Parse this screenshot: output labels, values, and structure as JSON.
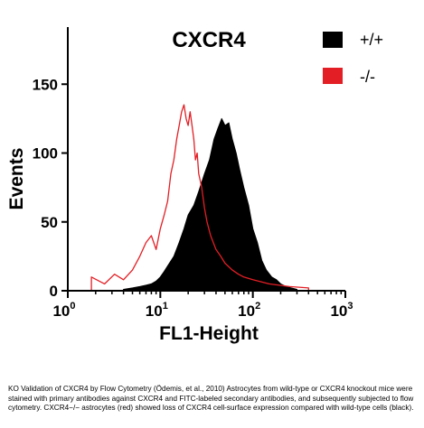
{
  "chart_data": {
    "type": "histogram",
    "title": "CXCR4",
    "xlabel": "FL1-Height",
    "ylabel": "Events",
    "xscale": "log",
    "xlim": [
      1,
      1000
    ],
    "ylim": [
      0,
      160
    ],
    "x_ticks": [
      {
        "base": "10",
        "exp": "0"
      },
      {
        "base": "10",
        "exp": "1"
      },
      {
        "base": "10",
        "exp": "2"
      },
      {
        "base": "10",
        "exp": "3"
      }
    ],
    "y_ticks": [
      0,
      50,
      100,
      150
    ],
    "legend_position": "top-right",
    "series": [
      {
        "name": "+/+",
        "color": "#000000",
        "style": "filled",
        "x": [
          4,
          5,
          6,
          7,
          8,
          9,
          10,
          11,
          12,
          14,
          16,
          18,
          20,
          23,
          26,
          30,
          34,
          38,
          42,
          46,
          50,
          55,
          60,
          66,
          72,
          80,
          90,
          100,
          112,
          125,
          140,
          160,
          180,
          200,
          230,
          260,
          300
        ],
        "y": [
          1,
          2,
          3,
          4,
          5,
          7,
          10,
          14,
          18,
          25,
          35,
          45,
          55,
          62,
          72,
          85,
          95,
          110,
          118,
          125,
          120,
          122,
          110,
          100,
          88,
          75,
          62,
          45,
          35,
          22,
          15,
          10,
          8,
          5,
          3,
          2,
          1
        ]
      },
      {
        "name": "-/-",
        "color": "#e31e24",
        "style": "outline",
        "x": [
          1.8,
          2.5,
          3.2,
          4,
          5,
          6,
          7,
          8,
          9,
          10,
          11,
          12,
          13,
          14,
          15,
          16,
          17,
          18,
          19,
          20,
          21,
          22,
          23,
          24,
          25,
          26,
          28,
          30,
          32,
          35,
          40,
          45,
          50,
          60,
          70,
          80,
          100,
          150,
          250,
          400
        ],
        "y": [
          10,
          5,
          12,
          8,
          15,
          25,
          35,
          40,
          30,
          45,
          55,
          65,
          85,
          95,
          110,
          120,
          130,
          135,
          125,
          120,
          130,
          120,
          110,
          95,
          100,
          85,
          75,
          60,
          50,
          40,
          30,
          25,
          20,
          15,
          12,
          10,
          8,
          5,
          3,
          2
        ]
      }
    ]
  },
  "caption": "KO Validation of CXCR4 by Flow Cytometry (Ödemis, et al., 2010)  Astrocytes from wild-type or CXCR4 knockout mice were stained with primary antibodies against CXCR4 and FITC-labeled secondary antibodies, and subsequently subjected to flow cytometry.  CXCR4−/− astrocytes (red) showed loss of CXCR4 cell-surface expression compared with wild-type cells (black)."
}
